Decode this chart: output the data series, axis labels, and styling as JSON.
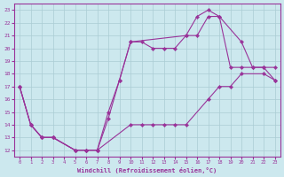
{
  "xlabel": "Windchill (Refroidissement éolien,°C)",
  "xlim": [
    0,
    23
  ],
  "ylim": [
    12,
    23
  ],
  "xticks": [
    0,
    1,
    2,
    3,
    4,
    5,
    6,
    7,
    8,
    9,
    10,
    11,
    12,
    13,
    14,
    15,
    16,
    17,
    18,
    19,
    20,
    21,
    22,
    23
  ],
  "yticks": [
    12,
    13,
    14,
    15,
    16,
    17,
    18,
    19,
    20,
    21,
    22,
    23
  ],
  "bg_color": "#cce8ee",
  "grid_color": "#aaccd4",
  "line_color": "#993399",
  "lines": [
    {
      "x": [
        0,
        1,
        2,
        3,
        5,
        6,
        7,
        10,
        11,
        12,
        13,
        14,
        15,
        17,
        18,
        19,
        20,
        22,
        23
      ],
      "y": [
        17,
        14,
        13,
        13,
        12,
        12,
        12,
        14,
        14,
        14,
        14,
        14,
        14,
        16,
        17,
        17,
        18,
        18,
        17.5
      ]
    },
    {
      "x": [
        0,
        1,
        2,
        3,
        5,
        6,
        7,
        8,
        9,
        10,
        11,
        12,
        13,
        14,
        15,
        16,
        17,
        18,
        19,
        20,
        21,
        22,
        23
      ],
      "y": [
        17,
        14,
        13,
        13,
        12,
        12,
        12,
        14.5,
        17.5,
        20.5,
        20.5,
        20,
        20,
        20,
        21,
        21,
        22.5,
        22.5,
        18.5,
        18.5,
        18.5,
        18.5,
        18.5
      ]
    },
    {
      "x": [
        0,
        1,
        2,
        3,
        5,
        6,
        7,
        8,
        9,
        10,
        15,
        16,
        17,
        18,
        20,
        21,
        22,
        23
      ],
      "y": [
        17,
        14,
        13,
        13,
        12,
        12,
        12,
        15,
        17.5,
        20.5,
        21,
        22.5,
        23,
        22.5,
        20.5,
        18.5,
        18.5,
        17.5
      ]
    }
  ]
}
